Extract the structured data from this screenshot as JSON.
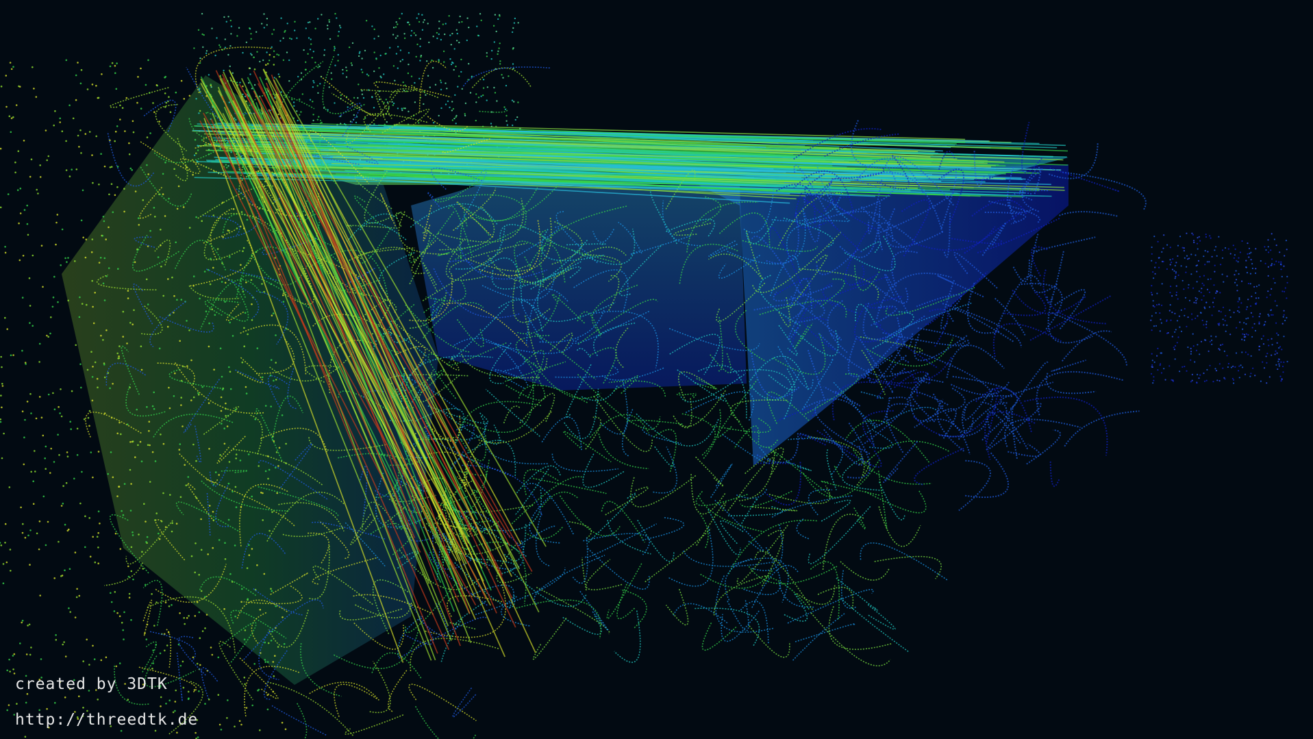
{
  "viewer": {
    "background_color": "#020a12",
    "scene_description_colors": {
      "near": "#c83a1a",
      "mid_warm": "#d6e02a",
      "mid": "#34d24a",
      "mid_cool": "#20c8c0",
      "far": "#1f5ae0",
      "farthest": "#1020c0"
    }
  },
  "overlay": {
    "created_by": "created by 3DTK",
    "url": "http://threedtk.de"
  }
}
